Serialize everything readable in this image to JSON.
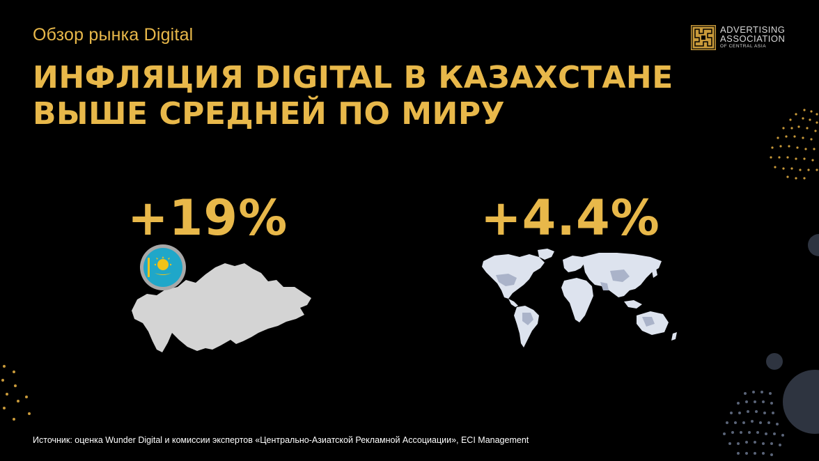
{
  "slide": {
    "subtitle": "Обзор рынка Digital",
    "headline_line1": "ИНФЛЯЦИЯ DIGITAL В КАЗАХСТАНЕ",
    "headline_line2": "ВЫШЕ СРЕДНЕЙ ПО МИРУ",
    "source": "Источник: оценка Wunder Digital и комиссии экспертов «Центрально-Азиатской Рекламной Ассоциации», ECI Management"
  },
  "logo": {
    "line1": "ADVERTISING",
    "line2": "ASSOCIATION",
    "line3": "OF CENTRAL ASIA"
  },
  "stats": {
    "kazakhstan": "+19%",
    "world": "+4.4%"
  },
  "colors": {
    "background": "#000000",
    "accent_gold": "#e8b84a",
    "map_gray": "#d4d4d4",
    "world_map_light": "#dde3ee",
    "world_map_highlight": "#aab3c9",
    "deco_slate": "#2e3440"
  },
  "icons": {
    "flag": "kazakhstan-flag-icon",
    "kz_map": "kazakhstan-map",
    "world_map": "world-map"
  }
}
